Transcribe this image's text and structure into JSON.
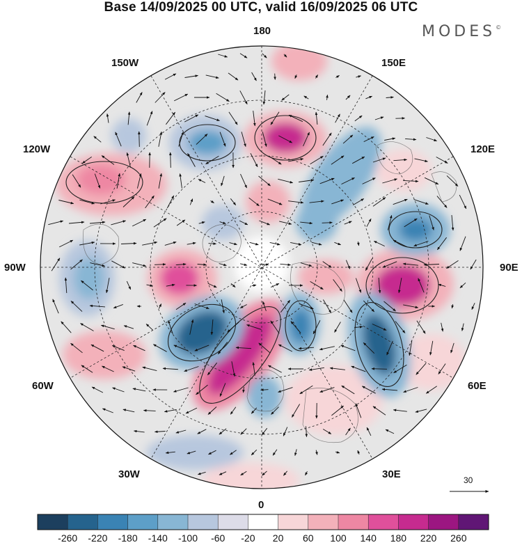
{
  "title": "Base 14/09/2025 00 UTC, valid 16/09/2025 06 UTC",
  "brand": {
    "name": "MODES",
    "mark": "©"
  },
  "longitude_labels": {
    "top": "180",
    "bottom": "0",
    "left": "90W",
    "right": "90E",
    "upper_left_1": "150W",
    "upper_left_2": "120W",
    "upper_right_1": "150E",
    "upper_right_2": "120E",
    "lower_left_1": "60W",
    "lower_left_2": "30W",
    "lower_right_1": "60E",
    "lower_right_2": "30E"
  },
  "reference_vector": {
    "value": "30"
  },
  "colorbar": {
    "ticks": [
      "-260",
      "-220",
      "-180",
      "-140",
      "-100",
      "-60",
      "-20",
      "20",
      "60",
      "100",
      "140",
      "180",
      "220",
      "260"
    ],
    "colors": [
      "#1c3f5e",
      "#25638d",
      "#3a83b4",
      "#5d9fc8",
      "#88b6d4",
      "#b7c7de",
      "#dddce8",
      "#ffffff",
      "#f7d6d8",
      "#f3b1ba",
      "#ee87a3",
      "#e0509b",
      "#c62b8f",
      "#9c1681",
      "#601675"
    ]
  },
  "colors": {
    "positive": "#c62b8f",
    "negative": "#25638d",
    "neutral": "#e3e3e3"
  }
}
